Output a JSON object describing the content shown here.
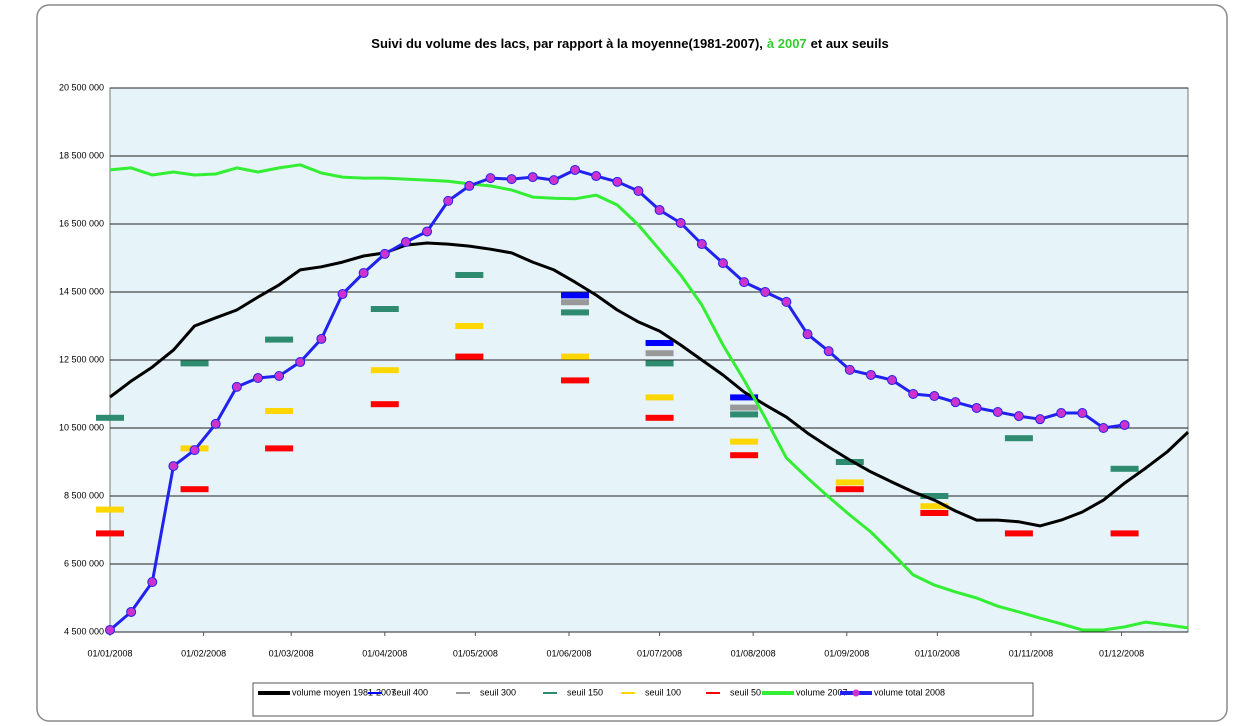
{
  "chart_data": {
    "type": "line",
    "title": [
      "Suivi du volume des lacs, par rapport à la moyenne(1981-2007),",
      "à 2007",
      "et aux seuils"
    ],
    "title_highlight_color": "#33cc33",
    "plot_background": "#e6f4fa",
    "grid": true,
    "ylim": [
      4500000,
      20500000
    ],
    "yticks": [
      {
        "value": 4500000,
        "label": "4 500 000"
      },
      {
        "value": 6500000,
        "label": "6 500 000"
      },
      {
        "value": 8500000,
        "label": "8 500 000"
      },
      {
        "value": 10500000,
        "label": "10 500 000"
      },
      {
        "value": 12500000,
        "label": "12 500 000"
      },
      {
        "value": 14500000,
        "label": "14 500 000"
      },
      {
        "value": 16500000,
        "label": "16 500 000"
      },
      {
        "value": 18500000,
        "label": "18 500 000"
      },
      {
        "value": 20500000,
        "label": "20 500 000"
      }
    ],
    "xlim": [
      "2008-01-01",
      "2008-12-23"
    ],
    "xticks": [
      {
        "value": "2008-01-01",
        "label": "01/01/2008"
      },
      {
        "value": "2008-02-01",
        "label": "01/02/2008"
      },
      {
        "value": "2008-03-01",
        "label": "01/03/2008"
      },
      {
        "value": "2008-04-01",
        "label": "01/04/2008"
      },
      {
        "value": "2008-05-01",
        "label": "01/05/2008"
      },
      {
        "value": "2008-06-01",
        "label": "01/06/2008"
      },
      {
        "value": "2008-07-01",
        "label": "01/07/2008"
      },
      {
        "value": "2008-08-01",
        "label": "01/08/2008"
      },
      {
        "value": "2008-09-01",
        "label": "01/09/2008"
      },
      {
        "value": "2008-10-01",
        "label": "01/10/2008"
      },
      {
        "value": "2008-11-01",
        "label": "01/11/2008"
      },
      {
        "value": "2008-12-01",
        "label": "01/12/2008"
      }
    ],
    "legend": "bottom",
    "x": [
      "2008-01-01",
      "2008-01-08",
      "2008-01-15",
      "2008-01-22",
      "2008-01-29",
      "2008-02-05",
      "2008-02-12",
      "2008-02-19",
      "2008-02-26",
      "2008-03-04",
      "2008-03-11",
      "2008-03-18",
      "2008-03-25",
      "2008-04-01",
      "2008-04-08",
      "2008-04-15",
      "2008-04-22",
      "2008-04-29",
      "2008-05-06",
      "2008-05-13",
      "2008-05-20",
      "2008-05-27",
      "2008-06-03",
      "2008-06-10",
      "2008-06-17",
      "2008-06-24",
      "2008-07-01",
      "2008-07-08",
      "2008-07-15",
      "2008-07-22",
      "2008-07-29",
      "2008-08-05",
      "2008-08-12",
      "2008-08-19",
      "2008-08-26",
      "2008-09-02",
      "2008-09-09",
      "2008-09-16",
      "2008-09-23",
      "2008-09-30",
      "2008-10-07",
      "2008-10-14",
      "2008-10-21",
      "2008-10-28",
      "2008-11-04",
      "2008-11-11",
      "2008-11-18",
      "2008-11-25",
      "2008-12-02",
      "2008-12-09",
      "2008-12-16",
      "2008-12-23"
    ],
    "series": [
      {
        "name": "volume moyen 1981-2007",
        "color": "#000000",
        "style": "line",
        "values": [
          11410000,
          11880000,
          12290000,
          12790000,
          13500000,
          13740000,
          13970000,
          14350000,
          14710000,
          15150000,
          15240000,
          15380000,
          15560000,
          15650000,
          15880000,
          15940000,
          15910000,
          15850000,
          15760000,
          15650000,
          15380000,
          15150000,
          14790000,
          14410000,
          13970000,
          13620000,
          13350000,
          12940000,
          12500000,
          12060000,
          11560000,
          11180000,
          10820000,
          10350000,
          9940000,
          9560000,
          9210000,
          8910000,
          8620000,
          8380000,
          8060000,
          7790000,
          7790000,
          7740000,
          7620000,
          7790000,
          8030000,
          8380000,
          8880000,
          9320000,
          9790000,
          10380000
        ]
      },
      {
        "name": "seuil 400",
        "color": "#0000ff",
        "style": "threshold",
        "x": [
          "2008-01-01",
          "2008-01-29",
          "2008-02-26",
          "2008-04-01",
          "2008-04-29",
          "2008-06-03",
          "2008-07-01",
          "2008-07-29",
          "2008-09-02",
          "2008-09-30",
          "2008-10-28",
          "2008-12-02"
        ],
        "values": [
          null,
          null,
          null,
          null,
          null,
          14400000,
          13000000,
          11400000,
          null,
          null,
          null,
          null
        ]
      },
      {
        "name": "seuil 300",
        "color": "#999999",
        "style": "threshold",
        "x": [
          "2008-01-01",
          "2008-01-29",
          "2008-02-26",
          "2008-04-01",
          "2008-04-29",
          "2008-06-03",
          "2008-07-01",
          "2008-07-29",
          "2008-09-02",
          "2008-09-30",
          "2008-10-28",
          "2008-12-02"
        ],
        "values": [
          null,
          null,
          null,
          null,
          null,
          14200000,
          12700000,
          11100000,
          null,
          null,
          null,
          null
        ]
      },
      {
        "name": "seuil 150",
        "color": "#2e8b6f",
        "style": "threshold",
        "x": [
          "2008-01-01",
          "2008-01-29",
          "2008-02-26",
          "2008-04-01",
          "2008-04-29",
          "2008-06-03",
          "2008-07-01",
          "2008-07-29",
          "2008-09-02",
          "2008-09-30",
          "2008-10-28",
          "2008-12-02"
        ],
        "values": [
          10800000,
          12400000,
          13100000,
          14000000,
          15000000,
          13900000,
          12400000,
          10900000,
          9500000,
          8500000,
          10200000,
          9300000
        ]
      },
      {
        "name": "seuil 100",
        "color": "#ffd700",
        "style": "threshold",
        "x": [
          "2008-01-01",
          "2008-01-29",
          "2008-02-26",
          "2008-04-01",
          "2008-04-29",
          "2008-06-03",
          "2008-07-01",
          "2008-07-29",
          "2008-09-02",
          "2008-09-30",
          "2008-10-28",
          "2008-12-02"
        ],
        "values": [
          8100000,
          9900000,
          11000000,
          12200000,
          13500000,
          12600000,
          11400000,
          10100000,
          8900000,
          8200000,
          null,
          null
        ]
      },
      {
        "name": "seuil 50",
        "color": "#ff0000",
        "style": "threshold",
        "x": [
          "2008-01-01",
          "2008-01-29",
          "2008-02-26",
          "2008-04-01",
          "2008-04-29",
          "2008-06-03",
          "2008-07-01",
          "2008-07-29",
          "2008-09-02",
          "2008-09-30",
          "2008-10-28",
          "2008-12-02"
        ],
        "values": [
          7400000,
          8700000,
          9900000,
          11200000,
          12600000,
          11900000,
          10800000,
          9700000,
          8700000,
          8000000,
          7400000,
          7400000
        ]
      },
      {
        "name": "volume 2007",
        "color": "#33ee33",
        "style": "line",
        "values": [
          18090000,
          18150000,
          17940000,
          18030000,
          17940000,
          17970000,
          18150000,
          18030000,
          18150000,
          18240000,
          18000000,
          17880000,
          17850000,
          17850000,
          17820000,
          17790000,
          17760000,
          17680000,
          17620000,
          17500000,
          17290000,
          17260000,
          17240000,
          17350000,
          17060000,
          16470000,
          15740000,
          15000000,
          14120000,
          12940000,
          11910000,
          10790000,
          9620000,
          9030000,
          8470000,
          7940000,
          7440000,
          6820000,
          6180000,
          5880000,
          5680000,
          5500000,
          5260000,
          5090000,
          4910000,
          4740000,
          4560000,
          4560000,
          4650000,
          4790000,
          4710000,
          4620000
        ]
      },
      {
        "name": "volume total 2008",
        "color": "#2222ee",
        "marker_color": "#cc33cc",
        "style": "line",
        "values": [
          4560000,
          5090000,
          5970000,
          9380000,
          9850000,
          10620000,
          11710000,
          11970000,
          12030000,
          12440000,
          13120000,
          14440000,
          15060000,
          15620000,
          15970000,
          16280000,
          17180000,
          17620000,
          17850000,
          17820000,
          17880000,
          17790000,
          18090000,
          17910000,
          17740000,
          17470000,
          16910000,
          16530000,
          15910000,
          15350000,
          14790000,
          14500000,
          14210000,
          13260000,
          12760000,
          12210000,
          12060000,
          11910000,
          11500000,
          11440000,
          11260000,
          11090000,
          10970000,
          10850000,
          10760000,
          10940000,
          10940000,
          10500000,
          10590000,
          null,
          null,
          null
        ]
      }
    ]
  }
}
